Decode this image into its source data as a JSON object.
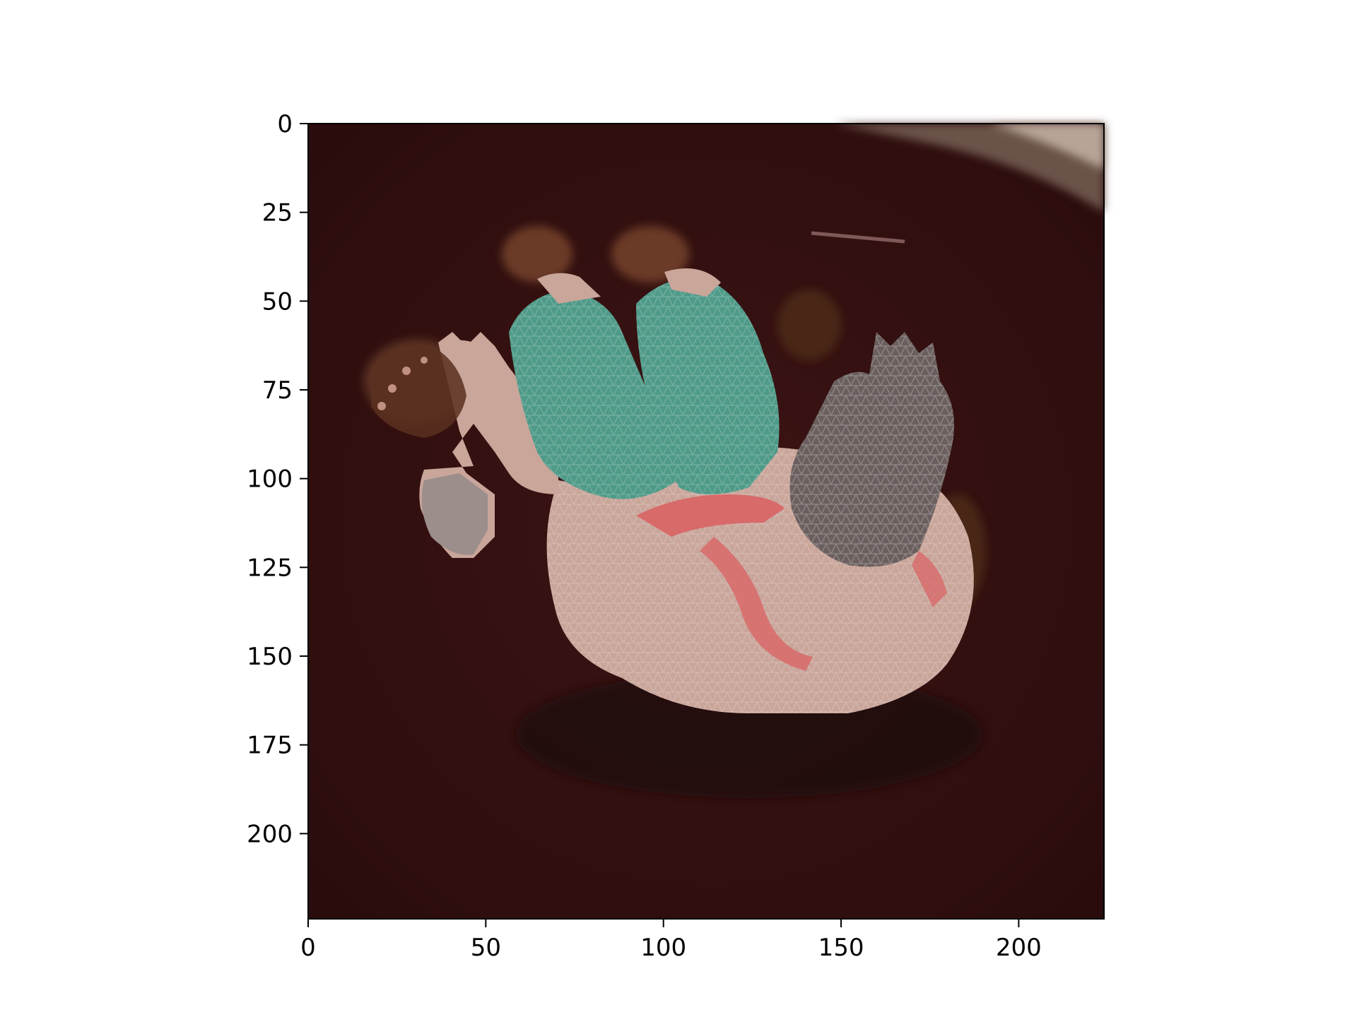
{
  "figure": {
    "type": "image-with-mesh-overlay",
    "background_color": "#ffffff",
    "axes": {
      "x_ticks": [
        "0",
        "50",
        "100",
        "150",
        "200"
      ],
      "y_ticks": [
        "0",
        "25",
        "50",
        "75",
        "100",
        "125",
        "150",
        "175",
        "200"
      ],
      "x_range": [
        0,
        224
      ],
      "y_range": [
        0,
        224
      ],
      "y_inverted": true
    },
    "image": {
      "description_tags": [
        "overhead-photo",
        "curled-person",
        "body-mesh-overlay"
      ],
      "colors": {
        "floor": "#3a1212",
        "floor_dark": "#2a0c0c",
        "skin_mesh": "#c9a59a",
        "shorts_mesh": "#4f9a88",
        "hand_mesh": "#6a5f5e",
        "red_accent": "#d86a6a",
        "skin_dark": "#5a3020"
      }
    }
  }
}
